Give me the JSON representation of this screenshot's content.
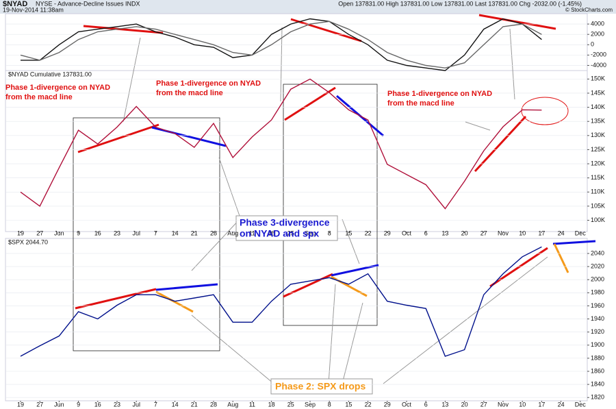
{
  "header": {
    "symbol": "$NYAD",
    "description": "NYSE - Advance-Decline Issues INDX",
    "timestamp": "19-Nov-2014 11:38am",
    "quote": "Open 137831.00 High 137831.00 Low 137831.00 Last 137831.00 Chg -2032.00 (-1.45%)",
    "credit": "© StockCharts.com"
  },
  "chart_data": [
    {
      "type": "line",
      "ylim": [
        -5000,
        6000
      ],
      "yticks": [
        4000,
        2000,
        0,
        -2000,
        -4000
      ],
      "series": [
        {
          "color": "#111111",
          "values": [
            -3000,
            -3000,
            0,
            2500,
            3000,
            3500,
            4000,
            2500,
            1500,
            0,
            -500,
            -2500,
            -2000,
            2000,
            4000,
            5000,
            4500,
            2000,
            0,
            -3000,
            -4000,
            -4500,
            -5000,
            -2000,
            3000,
            5000,
            4000,
            1000,
            null,
            null
          ]
        },
        {
          "color": "#666666",
          "values": [
            -2000,
            -3000,
            -1500,
            1000,
            2500,
            3000,
            3500,
            3000,
            2000,
            1000,
            0,
            -1500,
            -2000,
            0,
            2500,
            4000,
            4500,
            3000,
            1000,
            -1500,
            -3000,
            -4000,
            -4500,
            -3500,
            0,
            3500,
            4000,
            2000,
            null,
            null
          ]
        }
      ]
    },
    {
      "type": "line",
      "label": "$NYAD Cumulative 137831.00",
      "categories": [
        "19",
        "27",
        "Jun",
        "9",
        "16",
        "23",
        "Jul",
        "7",
        "14",
        "21",
        "28",
        "Aug",
        "11",
        "18",
        "25",
        "Sep",
        "8",
        "15",
        "22",
        "29",
        "Oct",
        "6",
        "13",
        "20",
        "27",
        "Nov",
        "10",
        "17",
        "24",
        "Dec"
      ],
      "ylim": [
        96000,
        153000
      ],
      "yticks": [
        {
          "value": 100000,
          "label": "100K"
        },
        {
          "value": 105000,
          "label": "105K"
        },
        {
          "value": 110000,
          "label": "110K"
        },
        {
          "value": 115000,
          "label": "115K"
        },
        {
          "value": 120000,
          "label": "120K"
        },
        {
          "value": 125000,
          "label": "125K"
        },
        {
          "value": 130000,
          "label": "130K"
        },
        {
          "value": 135000,
          "label": "135K"
        },
        {
          "value": 140000,
          "label": "140K"
        },
        {
          "value": 145000,
          "label": "145K"
        },
        {
          "value": 150000,
          "label": "150K"
        }
      ],
      "series": [
        {
          "color": "#b0103a",
          "values": [
            110000,
            105000,
            118600,
            131900,
            127000,
            133000,
            140300,
            133000,
            130700,
            125800,
            134300,
            122200,
            129500,
            135500,
            146400,
            150000,
            145200,
            139100,
            135500,
            119800,
            116200,
            112600,
            104100,
            113800,
            124600,
            133100,
            139100,
            139000,
            null,
            null
          ]
        }
      ],
      "annotations": [
        [
          "Phase 1-divergence on NYAD",
          "from the macd line"
        ],
        [
          "Phase 1-divergence on NYAD",
          "from the macd line"
        ],
        [
          "Phase 1-divergence on NYAD",
          "from the macd line"
        ],
        [
          "Phase 3-divergence",
          "on NYAD and spx"
        ]
      ]
    },
    {
      "type": "line",
      "label": "$SPX 2044.70",
      "categories": [
        "19",
        "27",
        "Jun",
        "9",
        "16",
        "23",
        "Jul",
        "7",
        "14",
        "21",
        "28",
        "Aug",
        "11",
        "18",
        "25",
        "Sep",
        "8",
        "15",
        "22",
        "29",
        "Oct",
        "6",
        "13",
        "20",
        "27",
        "Nov",
        "10",
        "17",
        "24",
        "Dec"
      ],
      "ylim": [
        1815,
        2063
      ],
      "yticks": [
        1820,
        1840,
        1860,
        1880,
        1900,
        1920,
        1940,
        1960,
        1980,
        2000,
        2020,
        2040
      ],
      "series": [
        {
          "color": "#00108b",
          "values": [
            1883,
            1899,
            1914,
            1951,
            1940,
            1961,
            1977,
            1977,
            1967,
            1972,
            1977,
            1935,
            1935,
            1967,
            1993,
            1998,
            2003,
            1993,
            2009,
            1967,
            1961,
            1956,
            1883,
            1893,
            1977,
            2009,
            2035,
            2050,
            null,
            null
          ]
        }
      ],
      "annotations": [
        [
          "Phase 2: SPX drops"
        ]
      ]
    }
  ]
}
